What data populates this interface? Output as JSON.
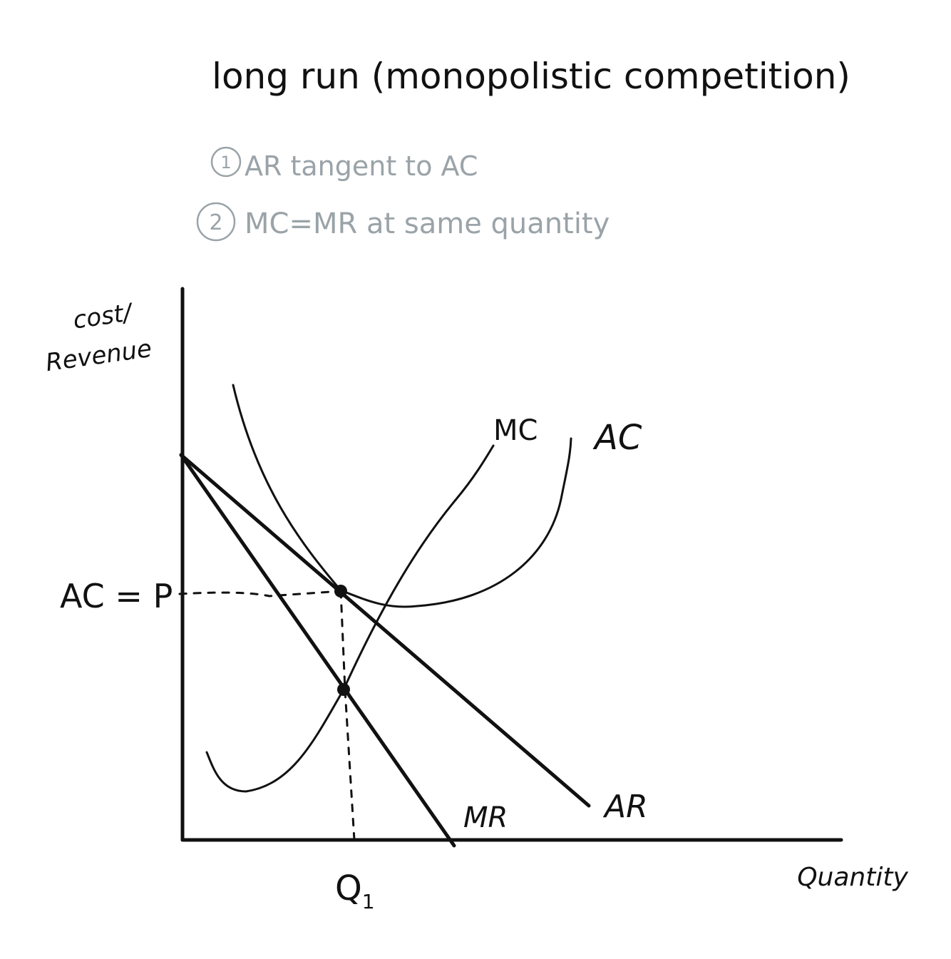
{
  "title": "long run (monopolistic competition)",
  "notes": [
    {
      "number": "1",
      "text": "AR tangent to AC"
    },
    {
      "number": "2",
      "text": "MC=MR at same quantity"
    }
  ],
  "axes": {
    "y_label_line1": "cost/",
    "y_label_line2": "Revenue",
    "x_label": "Quantity"
  },
  "labels": {
    "price_level": "AC = P",
    "quantity_level": "Q",
    "quantity_subscript": "1"
  },
  "curves": {
    "mc": "MC",
    "ac": "AC",
    "ar": "AR",
    "mr": "MR"
  },
  "colors": {
    "ink": "#111111",
    "notes": "#9aa3a8"
  }
}
